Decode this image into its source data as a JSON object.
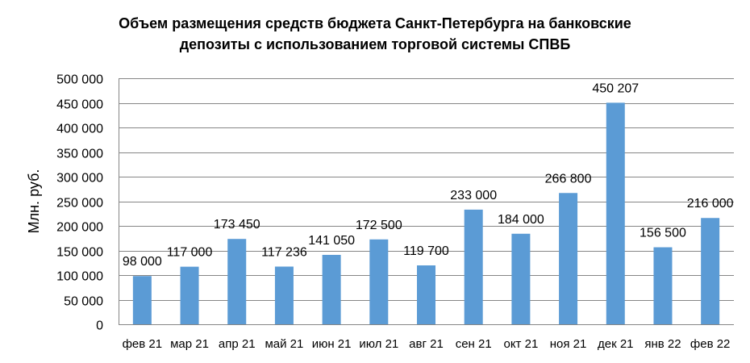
{
  "chart_data": {
    "type": "bar",
    "title_line1": "Объем размещения средств бюджета Санкт-Петербурга на  банковские",
    "title_line2": "депозиты с использованием торговой системы СПВБ",
    "xlabel": "",
    "ylabel": "Млн. руб.",
    "ylim": [
      0,
      500000
    ],
    "yticks": [
      0,
      50000,
      100000,
      150000,
      200000,
      250000,
      300000,
      350000,
      400000,
      450000,
      500000
    ],
    "ytick_labels": [
      "0",
      "50 000",
      "100 000",
      "150 000",
      "200 000",
      "250 000",
      "300 000",
      "350 000",
      "400 000",
      "450 000",
      "500 000"
    ],
    "grid": true,
    "legend": "none",
    "categories": [
      "фев 21",
      "мар 21",
      "апр 21",
      "май 21",
      "июн 21",
      "июл 21",
      "авг 21",
      "сен 21",
      "окт 21",
      "ноя 21",
      "дек 21",
      "янв 22",
      "фев 22"
    ],
    "values": [
      98000,
      117000,
      173450,
      117236,
      141050,
      172500,
      119700,
      233000,
      184000,
      266800,
      450207,
      156500,
      216000
    ],
    "value_labels": [
      "98 000",
      "117 000",
      "173 450",
      "117 236",
      "141 050",
      "172 500",
      "119 700",
      "233 000",
      "184 000",
      "266 800",
      "450 207",
      "156 500",
      "216 000"
    ],
    "bar_color": "#5B9BD5",
    "grid_color": "#868686"
  }
}
